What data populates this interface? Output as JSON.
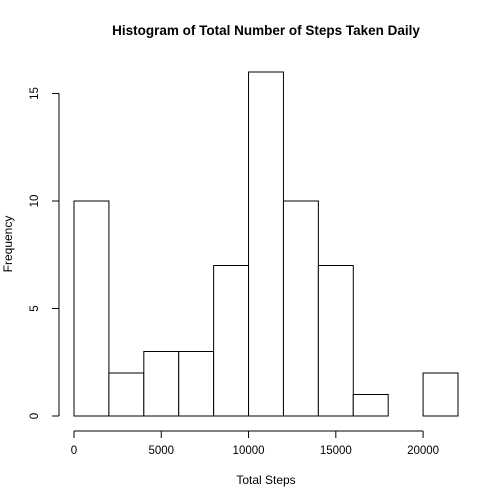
{
  "chart_data": {
    "type": "bar",
    "title": "Histogram of Total Number of Steps Taken Daily",
    "xlabel": "Total Steps",
    "ylabel": "Frequency",
    "bin_edges": [
      0,
      2000,
      4000,
      6000,
      8000,
      10000,
      12000,
      14000,
      16000,
      18000,
      20000,
      22000
    ],
    "values": [
      10,
      2,
      3,
      3,
      7,
      16,
      10,
      7,
      1,
      0,
      2
    ],
    "xlim": [
      0,
      22000
    ],
    "ylim": [
      0,
      16
    ],
    "x_ticks": [
      0,
      5000,
      10000,
      15000,
      20000
    ],
    "x_tick_labels": [
      "0",
      "5000",
      "10000",
      "15000",
      "20000"
    ],
    "y_ticks": [
      0,
      5,
      10,
      15
    ],
    "y_tick_labels": [
      "0",
      "5",
      "10",
      "15"
    ],
    "grid": false,
    "legend": false
  }
}
